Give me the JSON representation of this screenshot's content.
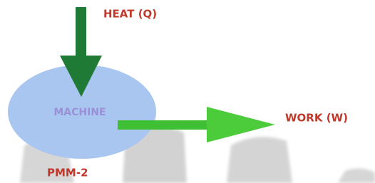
{
  "labels": {
    "heat": "HEAT (Q)",
    "machine": "MACHINE",
    "work": "WORK (W)",
    "pmm": "PMM-2"
  }
}
